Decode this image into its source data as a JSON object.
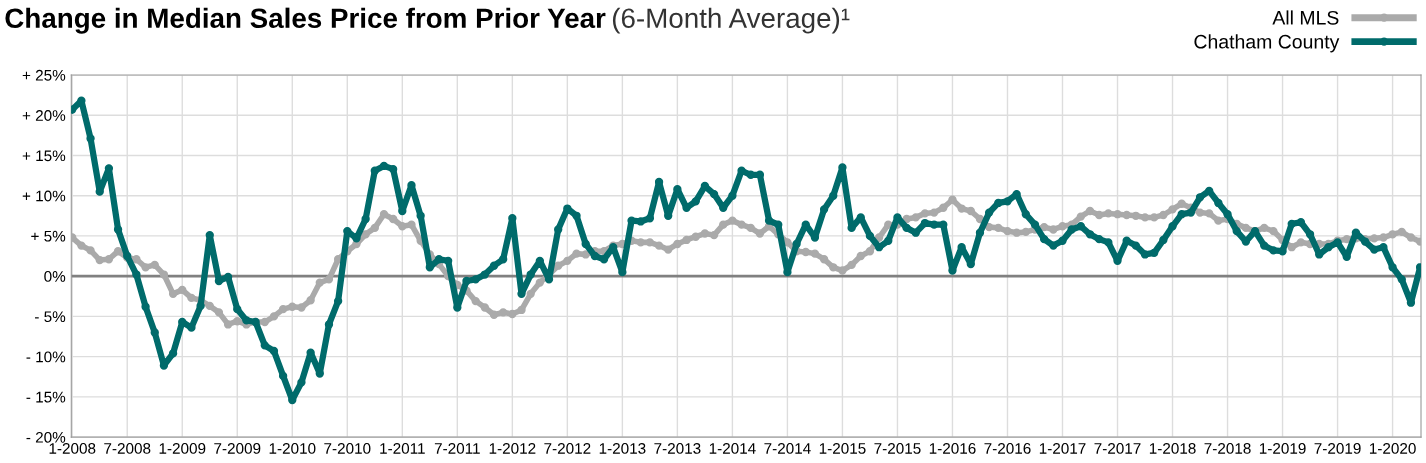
{
  "chart_data": {
    "type": "line",
    "title": "Change in Median Sales Price from Prior Year",
    "subtitle": "(6-Month Average)¹",
    "categories": [
      "1-2008",
      null,
      null,
      null,
      null,
      null,
      "7-2008",
      null,
      null,
      null,
      null,
      null,
      "1-2009",
      null,
      null,
      null,
      null,
      null,
      "7-2009",
      null,
      null,
      null,
      null,
      null,
      "1-2010",
      null,
      null,
      null,
      null,
      null,
      "7-2010",
      null,
      null,
      null,
      null,
      null,
      "1-2011",
      null,
      null,
      null,
      null,
      null,
      "7-2011",
      null,
      null,
      null,
      null,
      null,
      "1-2012",
      null,
      null,
      null,
      null,
      null,
      "7-2012",
      null,
      null,
      null,
      null,
      null,
      "1-2013",
      null,
      null,
      null,
      null,
      null,
      "7-2013",
      null,
      null,
      null,
      null,
      null,
      "1-2014",
      null,
      null,
      null,
      null,
      null,
      "7-2014",
      null,
      null,
      null,
      null,
      null,
      "1-2015",
      null,
      null,
      null,
      null,
      null,
      "7-2015",
      null,
      null,
      null,
      null,
      null,
      "1-2016",
      null,
      null,
      null,
      null,
      null,
      "7-2016",
      null,
      null,
      null,
      null,
      null,
      "1-2017",
      null,
      null,
      null,
      null,
      null,
      "7-2017",
      null,
      null,
      null,
      null,
      null,
      "1-2018",
      null,
      null,
      null,
      null,
      null,
      "7-2018",
      null,
      null,
      null,
      null,
      null,
      "1-2019",
      null,
      null,
      null,
      null,
      null,
      "7-2019",
      null,
      null,
      null,
      null,
      null,
      "1-2020",
      null,
      null,
      null
    ],
    "series": [
      {
        "name": "All MLS",
        "color": "#aaaaaa",
        "values": [
          4.8,
          3.8,
          3.2,
          2.0,
          2.1,
          3.1,
          2.3,
          2.1,
          1.1,
          1.4,
          0.2,
          -2.2,
          -1.7,
          -2.7,
          -3.0,
          -3.7,
          -4.5,
          -6.0,
          -5.6,
          -6.0,
          -5.7,
          -5.7,
          -5.0,
          -4.1,
          -3.8,
          -3.9,
          -3.0,
          -0.8,
          -0.4,
          2.1,
          3.1,
          4.0,
          5.2,
          6.0,
          7.7,
          7.1,
          6.2,
          6.4,
          4.4,
          2.7,
          1.5,
          0.0,
          -1.1,
          -1.8,
          -3.1,
          -3.9,
          -4.8,
          -4.5,
          -4.7,
          -4.2,
          -2.2,
          -0.8,
          0.2,
          1.3,
          1.9,
          2.8,
          2.7,
          3.1,
          3.1,
          3.8,
          4.0,
          4.4,
          4.2,
          4.2,
          3.8,
          3.3,
          4.0,
          4.5,
          4.9,
          5.3,
          5.1,
          6.4,
          6.9,
          6.4,
          6.0,
          5.3,
          6.2,
          5.2,
          4.2,
          3.1,
          3.0,
          2.8,
          2.1,
          1.1,
          0.7,
          1.4,
          2.5,
          3.1,
          4.8,
          6.4,
          6.4,
          7.1,
          7.3,
          7.8,
          7.9,
          8.5,
          9.5,
          8.4,
          8.1,
          7.1,
          6.1,
          6.0,
          5.6,
          5.4,
          5.5,
          5.8,
          6.1,
          5.8,
          6.2,
          6.4,
          7.4,
          8.1,
          7.6,
          7.8,
          7.7,
          7.6,
          7.5,
          7.3,
          7.3,
          7.6,
          8.3,
          9.0,
          8.5,
          7.9,
          7.8,
          6.9,
          7.1,
          6.5,
          6.0,
          5.6,
          6.0,
          5.6,
          4.5,
          3.6,
          4.2,
          4.0,
          4.0,
          4.0,
          4.4,
          4.6,
          4.7,
          4.6,
          4.7,
          4.8,
          5.2,
          5.5,
          4.8,
          4.3
        ]
      },
      {
        "name": "Chatham County",
        "color": "#006b6b",
        "values": [
          20.7,
          21.8,
          17.1,
          10.5,
          13.4,
          5.8,
          2.5,
          0.2,
          -3.8,
          -7.0,
          -11.1,
          -9.6,
          -5.7,
          -6.4,
          -3.7,
          5.1,
          -0.6,
          -0.1,
          -4.1,
          -5.5,
          -5.7,
          -8.6,
          -9.3,
          -12.4,
          -15.4,
          -13.2,
          -9.5,
          -12.1,
          -6.0,
          -3.1,
          5.6,
          4.7,
          7.1,
          13.1,
          13.7,
          13.3,
          8.1,
          11.3,
          7.5,
          1.1,
          2.1,
          1.9,
          -3.9,
          -0.6,
          -0.4,
          0.2,
          1.3,
          2.1,
          7.2,
          -2.2,
          0.2,
          1.9,
          -0.4,
          5.8,
          8.4,
          7.5,
          4.0,
          2.5,
          2.1,
          3.6,
          0.5,
          6.9,
          6.8,
          7.2,
          11.7,
          7.5,
          10.8,
          8.5,
          9.3,
          11.2,
          10.2,
          8.5,
          10.0,
          13.1,
          12.6,
          12.6,
          6.9,
          6.4,
          0.5,
          4.0,
          6.4,
          4.8,
          8.3,
          10.0,
          13.5,
          6.0,
          7.3,
          5.0,
          3.6,
          4.4,
          7.3,
          6.0,
          5.4,
          6.6,
          6.4,
          6.4,
          0.7,
          3.6,
          1.5,
          5.4,
          7.9,
          9.1,
          9.3,
          10.2,
          7.7,
          6.4,
          4.6,
          3.8,
          4.4,
          5.8,
          6.2,
          5.2,
          4.6,
          4.2,
          1.9,
          4.4,
          3.8,
          2.7,
          2.9,
          4.5,
          6.2,
          7.7,
          7.9,
          9.8,
          10.6,
          9.1,
          7.7,
          5.6,
          4.3,
          5.6,
          3.8,
          3.2,
          3.1,
          6.5,
          6.7,
          5.2,
          2.7,
          3.6,
          4.2,
          2.4,
          5.4,
          4.3,
          3.3,
          3.6,
          1.1,
          -0.4,
          -3.3,
          1.1
        ]
      }
    ],
    "ylim": [
      -20,
      25
    ],
    "yticks": [
      {
        "value": -20,
        "label": "- 20%"
      },
      {
        "value": -15,
        "label": "- 15%"
      },
      {
        "value": -10,
        "label": "- 10%"
      },
      {
        "value": -5,
        "label": "- 5%"
      },
      {
        "value": 0,
        "label": "0%"
      },
      {
        "value": 5,
        "label": "+ 5%"
      },
      {
        "value": 10,
        "label": "+ 10%"
      },
      {
        "value": 15,
        "label": "+ 15%"
      },
      {
        "value": 20,
        "label": "+ 20%"
      },
      {
        "value": 25,
        "label": "+ 25%"
      }
    ],
    "ref_lines": [
      {
        "axis": "y",
        "value": 0,
        "color": "#808080"
      }
    ],
    "grid": true,
    "legend": "top right",
    "marker": "circle",
    "line_style": "solid"
  }
}
